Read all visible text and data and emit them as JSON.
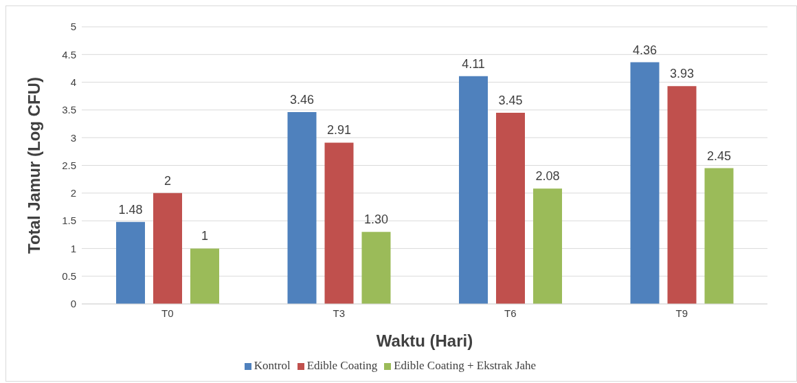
{
  "chart_data": {
    "type": "bar",
    "xlabel": "Waktu (Hari)",
    "ylabel": "Total Jamur (Log CFU)",
    "categories": [
      "T0",
      "T3",
      "T6",
      "T9"
    ],
    "series": [
      {
        "name": "Kontrol",
        "color": "#4f81bd",
        "values": [
          1.48,
          3.46,
          4.11,
          4.36
        ],
        "value_labels": [
          "1.48",
          "3.46",
          "4.11",
          "4.36"
        ]
      },
      {
        "name": "Edible Coating",
        "color": "#c0504d",
        "values": [
          2,
          2.91,
          3.45,
          3.93
        ],
        "value_labels": [
          "2",
          "2.91",
          "3.45",
          "3.93"
        ]
      },
      {
        "name": "Edible Coating + Ekstrak Jahe",
        "color": "#9bbb59",
        "values": [
          1,
          1.3,
          2.08,
          2.45
        ],
        "value_labels": [
          "1",
          "1.30",
          "2.08",
          "2.45"
        ]
      }
    ],
    "ylim": [
      0,
      5
    ],
    "yticks": [
      0,
      0.5,
      1,
      1.5,
      2,
      2.5,
      3,
      3.5,
      4,
      4.5,
      5
    ],
    "grid": "y",
    "legend": "bottom"
  }
}
